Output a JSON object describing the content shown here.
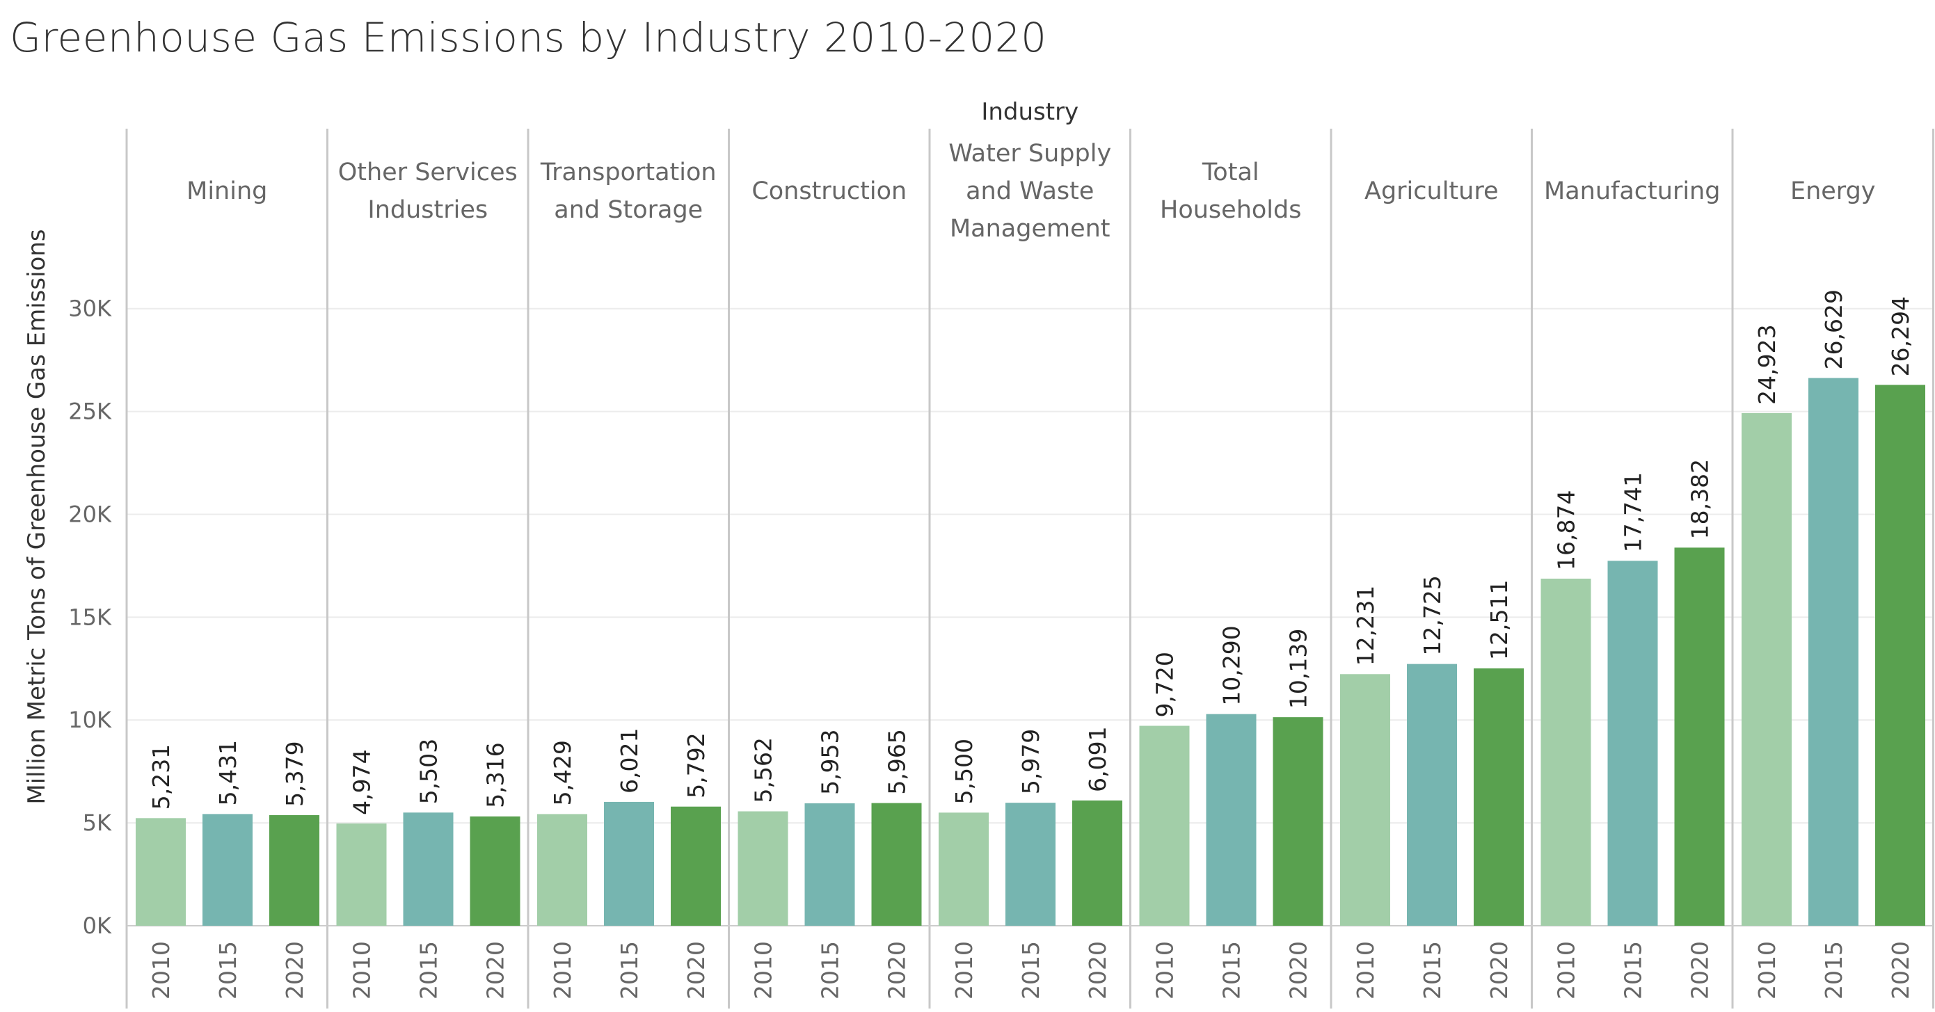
{
  "chart_data": {
    "type": "bar",
    "title": "Greenhouse Gas Emissions by Industry 2010-2020",
    "header_label": "Industry",
    "ylabel": "Million Metric Tons of Greenhouse Gas Emissions",
    "ylim": [
      0,
      33000
    ],
    "yticks": [
      0,
      5000,
      10000,
      15000,
      20000,
      25000,
      30000
    ],
    "ytick_labels": [
      "0K",
      "5K",
      "10K",
      "15K",
      "20K",
      "25K",
      "30K"
    ],
    "grid": true,
    "years": [
      "2010",
      "2015",
      "2020"
    ],
    "colors": [
      "#a2cea8",
      "#76b5b0",
      "#59a14f"
    ],
    "industries": [
      {
        "name": "Mining",
        "label_lines": [
          "Mining"
        ],
        "values": [
          5231,
          5431,
          5379
        ],
        "value_labels": [
          "5,231",
          "5,431",
          "5,379"
        ]
      },
      {
        "name": "Other Services Industries",
        "label_lines": [
          "Other Services",
          "Industries"
        ],
        "values": [
          4974,
          5503,
          5316
        ],
        "value_labels": [
          "4,974",
          "5,503",
          "5,316"
        ]
      },
      {
        "name": "Transportation and Storage",
        "label_lines": [
          "Transportation",
          "and Storage"
        ],
        "values": [
          5429,
          6021,
          5792
        ],
        "value_labels": [
          "5,429",
          "6,021",
          "5,792"
        ]
      },
      {
        "name": "Construction",
        "label_lines": [
          "Construction"
        ],
        "values": [
          5562,
          5953,
          5965
        ],
        "value_labels": [
          "5,562",
          "5,953",
          "5,965"
        ]
      },
      {
        "name": "Water Supply and Waste Management",
        "label_lines": [
          "Water Supply",
          "and Waste",
          "Management"
        ],
        "values": [
          5500,
          5979,
          6091
        ],
        "value_labels": [
          "5,500",
          "5,979",
          "6,091"
        ]
      },
      {
        "name": "Total Households",
        "label_lines": [
          "Total",
          "Households"
        ],
        "values": [
          9720,
          10290,
          10139
        ],
        "value_labels": [
          "9,720",
          "10,290",
          "10,139"
        ]
      },
      {
        "name": "Agriculture",
        "label_lines": [
          "Agriculture"
        ],
        "values": [
          12231,
          12725,
          12511
        ],
        "value_labels": [
          "12,231",
          "12,725",
          "12,511"
        ]
      },
      {
        "name": "Manufacturing",
        "label_lines": [
          "Manufacturing"
        ],
        "values": [
          16874,
          17741,
          18382
        ],
        "value_labels": [
          "16,874",
          "17,741",
          "18,382"
        ]
      },
      {
        "name": "Energy",
        "label_lines": [
          "Energy"
        ],
        "values": [
          24923,
          26629,
          26294
        ],
        "value_labels": [
          "24,923",
          "26,629",
          "26,294"
        ]
      }
    ]
  }
}
